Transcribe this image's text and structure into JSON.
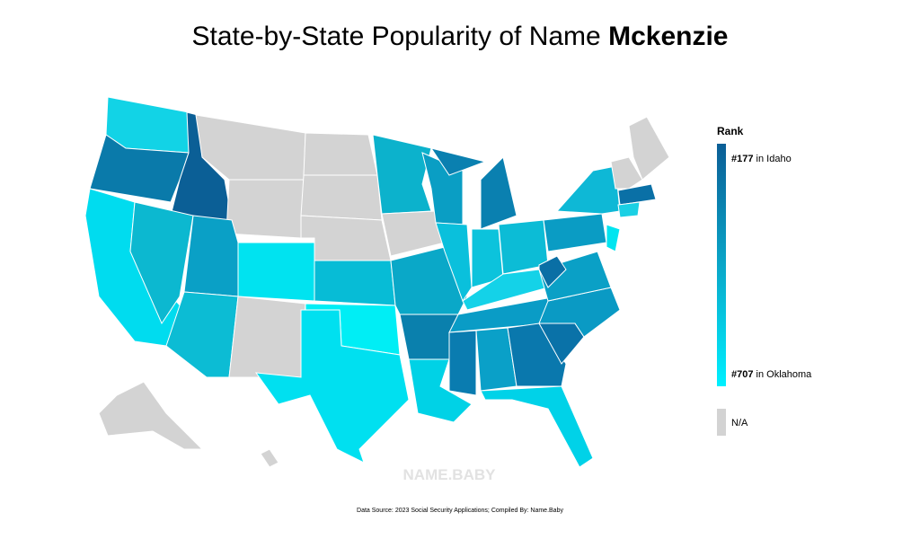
{
  "title": {
    "prefix": "State-by-State Popularity of Name",
    "name": "Mckenzie"
  },
  "legend": {
    "title": "Rank",
    "top": {
      "rank": "#177",
      "place": "in Idaho"
    },
    "bottom": {
      "rank": "#707",
      "place": "in Oklahoma"
    },
    "na": "N/A"
  },
  "watermark": "NAME.BABY",
  "source": "Data Source: 2023 Social Security Applications; Compiled By: Name.Baby"
}
